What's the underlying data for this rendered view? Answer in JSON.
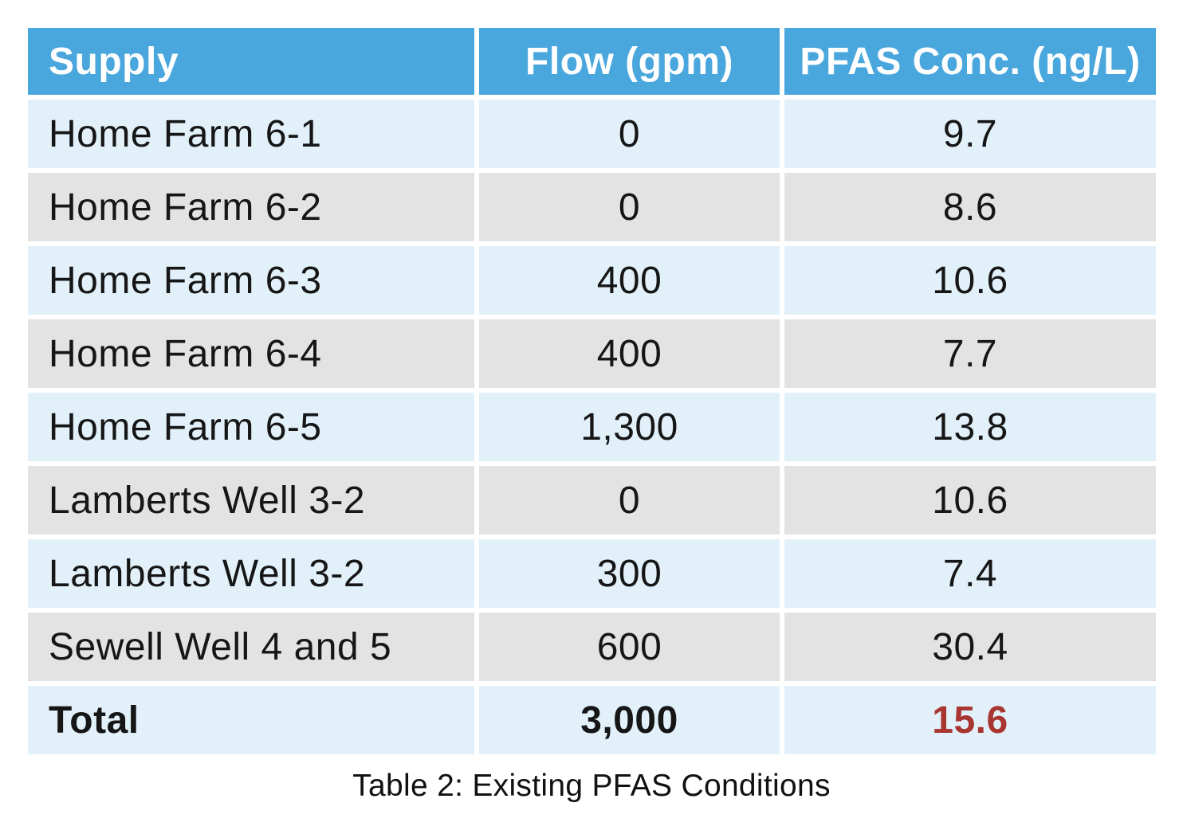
{
  "table": {
    "columns": [
      {
        "label": "Supply"
      },
      {
        "label": "Flow (gpm)"
      },
      {
        "label": "PFAS Conc. (ng/L)"
      }
    ],
    "rows": [
      {
        "supply": "Home Farm 6-1",
        "flow": "0",
        "pfas": "9.7"
      },
      {
        "supply": "Home Farm 6-2",
        "flow": "0",
        "pfas": "8.6"
      },
      {
        "supply": "Home Farm 6-3",
        "flow": "400",
        "pfas": "10.6"
      },
      {
        "supply": "Home Farm 6-4",
        "flow": "400",
        "pfas": "7.7"
      },
      {
        "supply": "Home Farm 6-5",
        "flow": "1,300",
        "pfas": "13.8"
      },
      {
        "supply": "Lamberts Well 3-2",
        "flow": "0",
        "pfas": "10.6"
      },
      {
        "supply": "Lamberts Well 3-2",
        "flow": "300",
        "pfas": "7.4"
      },
      {
        "supply": "Sewell Well 4 and 5",
        "flow": "600",
        "pfas": "30.4"
      }
    ],
    "total": {
      "supply": "Total",
      "flow": "3,000",
      "pfas": "15.6"
    },
    "caption": "Table 2: Existing PFAS Conditions"
  },
  "colors": {
    "header_background": "#4AA7DD",
    "header_text": "#FFFFFF",
    "row_light_blue": "#E2F0FA",
    "row_gray": "#E3E3E3",
    "body_text": "#161616",
    "total_pfas_red": "#A93530",
    "background": "#FFFFFF"
  },
  "chart_data": {
    "type": "table",
    "title": "Table 2: Existing PFAS Conditions",
    "columns": [
      "Supply",
      "Flow (gpm)",
      "PFAS Conc. (ng/L)"
    ],
    "rows": [
      [
        "Home Farm 6-1",
        0,
        9.7
      ],
      [
        "Home Farm 6-2",
        0,
        8.6
      ],
      [
        "Home Farm 6-3",
        400,
        10.6
      ],
      [
        "Home Farm 6-4",
        400,
        7.7
      ],
      [
        "Home Farm 6-5",
        1300,
        13.8
      ],
      [
        "Lamberts Well 3-2",
        0,
        10.6
      ],
      [
        "Lamberts Well 3-2",
        300,
        7.4
      ],
      [
        "Sewell Well 4 and 5",
        600,
        30.4
      ],
      [
        "Total",
        3000,
        15.6
      ]
    ]
  }
}
